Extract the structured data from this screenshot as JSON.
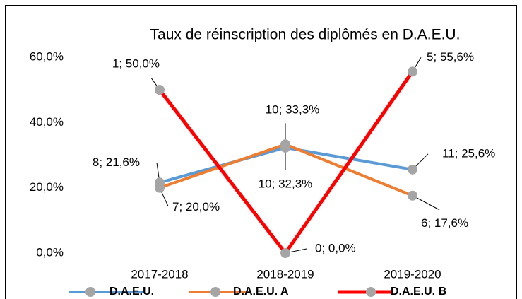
{
  "chart_data": {
    "type": "line",
    "title": "Taux de réinscription des diplômés en D.A.E.U.",
    "categories": [
      "2017-2018",
      "2018-2019",
      "2019-2020"
    ],
    "series": [
      {
        "name": "D.A.E.U.",
        "color": "#5b9bd5",
        "values": [
          21.6,
          32.3,
          25.6
        ],
        "value_labels": [
          "8; 21,6%",
          "10; 32,3%",
          "11; 25,6%"
        ]
      },
      {
        "name": "D.A.E.U. A",
        "color": "#ed7d31",
        "values": [
          20.0,
          33.3,
          17.6
        ],
        "value_labels": [
          "7; 20,0%",
          "10; 33,3%",
          "6; 17,6%"
        ]
      },
      {
        "name": "D.A.E.U. B",
        "color": "#ff0000",
        "values": [
          50.0,
          0.0,
          55.6
        ],
        "value_labels": [
          "1; 50,0%",
          "0; 0,0%",
          "5; 55,6%"
        ]
      }
    ],
    "marker_color": "#a5a5a5",
    "ylim": [
      0,
      60
    ],
    "yticks": [
      {
        "value": 0,
        "label": "0,0%"
      },
      {
        "value": 20,
        "label": "20,0%"
      },
      {
        "value": 40,
        "label": "40,0%"
      },
      {
        "value": 60,
        "label": "60,0%"
      }
    ],
    "grid": false,
    "legend": "bottom"
  }
}
